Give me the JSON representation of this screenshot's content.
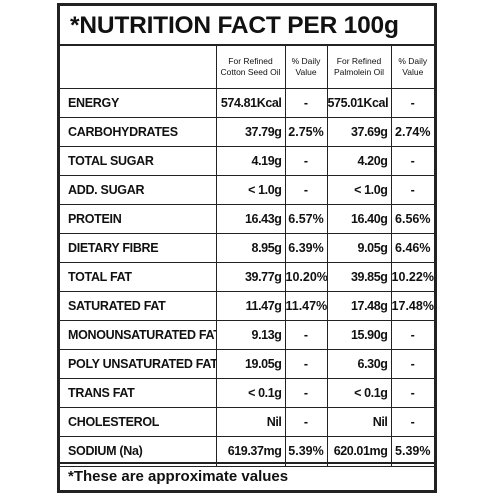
{
  "title": "*NUTRITION FACT PER 100g",
  "header": {
    "col1": "For Refined Cotton Seed Oil",
    "col2": "% Daily Value",
    "col3": "For Refined Palmolein Oil",
    "col4": "% Daily Value"
  },
  "rows": [
    {
      "name": "ENERGY",
      "cotton": "574.81Kcal",
      "cotton_dv": "-",
      "palm": "575.01Kcal",
      "palm_dv": "-"
    },
    {
      "name": "CARBOHYDRATES",
      "cotton": "37.79g",
      "cotton_dv": "2.75%",
      "palm": "37.69g",
      "palm_dv": "2.74%"
    },
    {
      "name": "TOTAL SUGAR",
      "cotton": "4.19g",
      "cotton_dv": "-",
      "palm": "4.20g",
      "palm_dv": "-"
    },
    {
      "name": "ADD. SUGAR",
      "cotton": "< 1.0g",
      "cotton_dv": "-",
      "palm": "< 1.0g",
      "palm_dv": "-"
    },
    {
      "name": "PROTEIN",
      "cotton": "16.43g",
      "cotton_dv": "6.57%",
      "palm": "16.40g",
      "palm_dv": "6.56%"
    },
    {
      "name": "DIETARY FIBRE",
      "cotton": "8.95g",
      "cotton_dv": "6.39%",
      "palm": "9.05g",
      "palm_dv": "6.46%"
    },
    {
      "name": "TOTAL FAT",
      "cotton": "39.77g",
      "cotton_dv": "10.20%",
      "palm": "39.85g",
      "palm_dv": "10.22%"
    },
    {
      "name": "SATURATED FAT",
      "cotton": "11.47g",
      "cotton_dv": "11.47%",
      "palm": "17.48g",
      "palm_dv": "17.48%"
    },
    {
      "name": "MONOUNSATURATED FAT",
      "cotton": "9.13g",
      "cotton_dv": "-",
      "palm": "15.90g",
      "palm_dv": "-"
    },
    {
      "name": "POLY UNSATURATED FAT",
      "cotton": "19.05g",
      "cotton_dv": "-",
      "palm": "6.30g",
      "palm_dv": "-"
    },
    {
      "name": "TRANS FAT",
      "cotton": "< 0.1g",
      "cotton_dv": "-",
      "palm": "< 0.1g",
      "palm_dv": "-"
    },
    {
      "name": "CHOLESTEROL",
      "cotton": "Nil",
      "cotton_dv": "-",
      "palm": "Nil",
      "palm_dv": "-"
    },
    {
      "name": "SODIUM (Na)",
      "cotton": "619.37mg",
      "cotton_dv": "5.39%",
      "palm": "620.01mg",
      "palm_dv": "5.39%"
    }
  ],
  "footer": "*These are approximate values"
}
